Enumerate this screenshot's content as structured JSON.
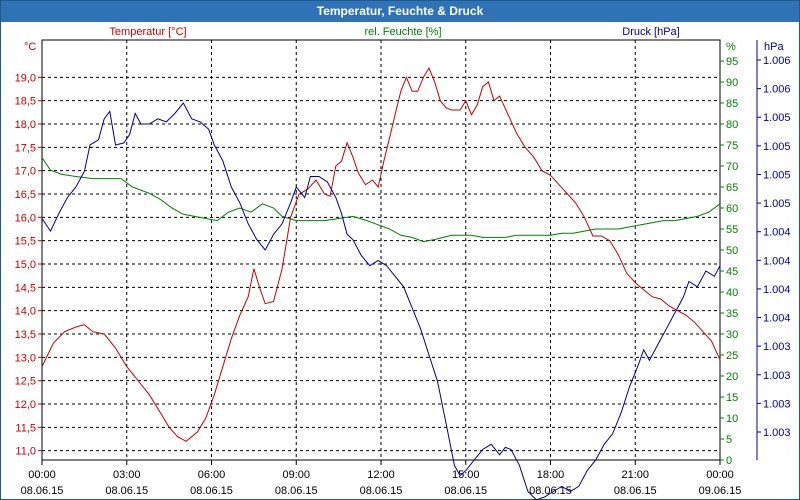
{
  "window": {
    "title": "Temperatur, Feuchte & Druck"
  },
  "colors": {
    "temperature": "#cc0000",
    "humidity": "#008000",
    "pressure": "#000099",
    "grid": "#000000",
    "frame": "#1e5a8c",
    "titlebar": "#2f73b6"
  },
  "chart_data": {
    "type": "line",
    "title": "Temperatur, Feuchte & Druck",
    "x_ticks": [
      {
        "time": "00:00",
        "date": "08.06.15"
      },
      {
        "time": "03:00",
        "date": "08.06.15"
      },
      {
        "time": "06:00",
        "date": "08.06.15"
      },
      {
        "time": "09:00",
        "date": "08.06.15"
      },
      {
        "time": "12:00",
        "date": "08.06.15"
      },
      {
        "time": "15:00",
        "date": "08.06.15"
      },
      {
        "time": "18:00",
        "date": "08.06.15"
      },
      {
        "time": "21:00",
        "date": "08.06.15"
      },
      {
        "time": "00:00",
        "date": "09.06.15"
      }
    ],
    "xlim_hours": [
      0,
      24
    ],
    "axes": {
      "temperature": {
        "label": "Temperatur [°C]",
        "unit": "°C",
        "ylim": [
          10.8,
          19.8
        ],
        "ticks": [
          "11,0",
          "11,5",
          "12,0",
          "12,5",
          "13,0",
          "13,5",
          "14,0",
          "14,5",
          "15,0",
          "15,5",
          "16,0",
          "16,5",
          "17,0",
          "17,5",
          "18,0",
          "18,5",
          "19,0"
        ]
      },
      "humidity": {
        "label": "rel. Feuchte [%]",
        "unit": "%",
        "ylim": [
          0,
          100
        ],
        "ticks": [
          "0",
          "5",
          "10",
          "15",
          "20",
          "25",
          "30",
          "35",
          "40",
          "45",
          "50",
          "55",
          "60",
          "65",
          "70",
          "75",
          "80",
          "85",
          "90",
          "95"
        ]
      },
      "pressure": {
        "label": "Druck [hPa]",
        "unit": "hPa",
        "ylim": [
          1002.6,
          1006.6
        ],
        "ticks": [
          "1.003",
          "1.003",
          "1.003",
          "1.003",
          "1.004",
          "1.004",
          "1.004",
          "1.004",
          "1.005",
          "1.005",
          "1.005",
          "1.005",
          "1.006",
          "1.006"
        ]
      }
    },
    "series": [
      {
        "name": "Temperatur [°C]",
        "axis": "temperature",
        "points": [
          [
            0,
            12.8
          ],
          [
            0.4,
            13.3
          ],
          [
            0.8,
            13.55
          ],
          [
            1.2,
            13.65
          ],
          [
            1.5,
            13.7
          ],
          [
            1.8,
            13.55
          ],
          [
            2.2,
            13.5
          ],
          [
            2.6,
            13.2
          ],
          [
            3,
            12.8
          ],
          [
            3.4,
            12.5
          ],
          [
            3.8,
            12.2
          ],
          [
            4.2,
            11.8
          ],
          [
            4.5,
            11.5
          ],
          [
            4.8,
            11.3
          ],
          [
            5.1,
            11.2
          ],
          [
            5.5,
            11.4
          ],
          [
            5.8,
            11.7
          ],
          [
            6.1,
            12.2
          ],
          [
            6.4,
            12.8
          ],
          [
            6.7,
            13.4
          ],
          [
            7,
            13.9
          ],
          [
            7.3,
            14.3
          ],
          [
            7.5,
            14.9
          ],
          [
            7.7,
            14.5
          ],
          [
            7.9,
            14.15
          ],
          [
            8.2,
            14.2
          ],
          [
            8.5,
            14.9
          ],
          [
            8.8,
            16.0
          ],
          [
            9.1,
            16.5
          ],
          [
            9.4,
            16.6
          ],
          [
            9.7,
            16.8
          ],
          [
            10,
            16.5
          ],
          [
            10.2,
            16.45
          ],
          [
            10.4,
            17.1
          ],
          [
            10.6,
            17.2
          ],
          [
            10.8,
            17.6
          ],
          [
            11,
            17.3
          ],
          [
            11.2,
            16.95
          ],
          [
            11.45,
            16.7
          ],
          [
            11.7,
            16.8
          ],
          [
            11.9,
            16.65
          ],
          [
            12.1,
            17.2
          ],
          [
            12.3,
            17.7
          ],
          [
            12.5,
            18.2
          ],
          [
            12.7,
            18.7
          ],
          [
            12.9,
            19.0
          ],
          [
            13.1,
            18.7
          ],
          [
            13.3,
            18.7
          ],
          [
            13.5,
            19.0
          ],
          [
            13.7,
            19.2
          ],
          [
            13.9,
            18.9
          ],
          [
            14.1,
            18.5
          ],
          [
            14.3,
            18.35
          ],
          [
            14.5,
            18.3
          ],
          [
            14.8,
            18.3
          ],
          [
            15,
            18.5
          ],
          [
            15.2,
            18.2
          ],
          [
            15.4,
            18.4
          ],
          [
            15.6,
            18.8
          ],
          [
            15.8,
            18.9
          ],
          [
            16,
            18.5
          ],
          [
            16.2,
            18.6
          ],
          [
            16.5,
            18.2
          ],
          [
            16.8,
            17.8
          ],
          [
            17.1,
            17.5
          ],
          [
            17.4,
            17.3
          ],
          [
            17.7,
            17.0
          ],
          [
            18,
            16.9
          ],
          [
            18.3,
            16.7
          ],
          [
            18.6,
            16.5
          ],
          [
            18.9,
            16.3
          ],
          [
            19.2,
            16.0
          ],
          [
            19.5,
            15.6
          ],
          [
            19.8,
            15.6
          ],
          [
            20.1,
            15.5
          ],
          [
            20.4,
            15.2
          ],
          [
            20.7,
            14.8
          ],
          [
            21,
            14.6
          ],
          [
            21.3,
            14.45
          ],
          [
            21.6,
            14.3
          ],
          [
            21.9,
            14.25
          ],
          [
            22.2,
            14.1
          ],
          [
            22.5,
            14.0
          ],
          [
            22.8,
            13.9
          ],
          [
            23.1,
            13.75
          ],
          [
            23.4,
            13.55
          ],
          [
            23.7,
            13.35
          ],
          [
            24,
            12.95
          ]
        ]
      },
      {
        "name": "rel. Feuchte [%]",
        "axis": "humidity",
        "points": [
          [
            0,
            72
          ],
          [
            0.3,
            69
          ],
          [
            0.7,
            68
          ],
          [
            1.2,
            67.5
          ],
          [
            1.8,
            67
          ],
          [
            2.4,
            67
          ],
          [
            2.8,
            67
          ],
          [
            3.2,
            65
          ],
          [
            3.8,
            63.5
          ],
          [
            4.2,
            62
          ],
          [
            4.6,
            60
          ],
          [
            5,
            58.5
          ],
          [
            5.4,
            58
          ],
          [
            5.8,
            57.5
          ],
          [
            6.2,
            57
          ],
          [
            6.6,
            59
          ],
          [
            7,
            60
          ],
          [
            7.4,
            59
          ],
          [
            7.8,
            61
          ],
          [
            8.2,
            60
          ],
          [
            8.5,
            58
          ],
          [
            9,
            57
          ],
          [
            9.5,
            57
          ],
          [
            10,
            57
          ],
          [
            10.5,
            57.5
          ],
          [
            11,
            58
          ],
          [
            11.5,
            57
          ],
          [
            11.9,
            56
          ],
          [
            12.3,
            55
          ],
          [
            12.7,
            53.5
          ],
          [
            13.1,
            53
          ],
          [
            13.5,
            52
          ],
          [
            13.9,
            52.5
          ],
          [
            14.2,
            53
          ],
          [
            14.5,
            53.5
          ],
          [
            14.8,
            53.5
          ],
          [
            15.2,
            53.5
          ],
          [
            15.6,
            53
          ],
          [
            16,
            53
          ],
          [
            16.4,
            53
          ],
          [
            16.8,
            53.5
          ],
          [
            17.2,
            53.5
          ],
          [
            17.6,
            53.5
          ],
          [
            18,
            53.5
          ],
          [
            18.4,
            54
          ],
          [
            18.8,
            54
          ],
          [
            19.2,
            54.5
          ],
          [
            19.6,
            55
          ],
          [
            20,
            55
          ],
          [
            20.4,
            55
          ],
          [
            20.8,
            55.5
          ],
          [
            21.2,
            56
          ],
          [
            21.6,
            56.5
          ],
          [
            22,
            57
          ],
          [
            22.4,
            57
          ],
          [
            22.8,
            57.5
          ],
          [
            23.2,
            58
          ],
          [
            23.6,
            59
          ],
          [
            24,
            61
          ]
        ]
      },
      {
        "name": "Druck [hPa]",
        "axis": "pressure",
        "points": [
          [
            0,
            1004.9
          ],
          [
            0.3,
            1004.78
          ],
          [
            0.6,
            1004.95
          ],
          [
            0.9,
            1005.1
          ],
          [
            1.2,
            1005.2
          ],
          [
            1.5,
            1005.35
          ],
          [
            1.7,
            1005.6
          ],
          [
            2,
            1005.65
          ],
          [
            2.2,
            1005.85
          ],
          [
            2.4,
            1005.92
          ],
          [
            2.6,
            1005.6
          ],
          [
            2.9,
            1005.62
          ],
          [
            3.1,
            1005.7
          ],
          [
            3.3,
            1005.9
          ],
          [
            3.5,
            1005.8
          ],
          [
            3.8,
            1005.8
          ],
          [
            4.1,
            1005.85
          ],
          [
            4.4,
            1005.82
          ],
          [
            4.7,
            1005.9
          ],
          [
            5,
            1006.0
          ],
          [
            5.3,
            1005.85
          ],
          [
            5.6,
            1005.82
          ],
          [
            5.9,
            1005.75
          ],
          [
            6.1,
            1005.6
          ],
          [
            6.4,
            1005.45
          ],
          [
            6.7,
            1005.2
          ],
          [
            7,
            1005.05
          ],
          [
            7.3,
            1004.85
          ],
          [
            7.6,
            1004.7
          ],
          [
            7.9,
            1004.6
          ],
          [
            8.2,
            1004.75
          ],
          [
            8.5,
            1004.85
          ],
          [
            8.8,
            1005.05
          ],
          [
            9.0,
            1005.2
          ],
          [
            9.3,
            1005.1
          ],
          [
            9.5,
            1005.3
          ],
          [
            9.8,
            1005.3
          ],
          [
            10.1,
            1005.25
          ],
          [
            10.4,
            1005.1
          ],
          [
            10.6,
            1004.95
          ],
          [
            10.8,
            1004.75
          ],
          [
            11.0,
            1004.7
          ],
          [
            11.3,
            1004.55
          ],
          [
            11.6,
            1004.45
          ],
          [
            11.9,
            1004.5
          ],
          [
            12.2,
            1004.45
          ],
          [
            12.5,
            1004.35
          ],
          [
            12.8,
            1004.25
          ],
          [
            13.1,
            1004.05
          ],
          [
            13.4,
            1003.85
          ],
          [
            13.7,
            1003.6
          ],
          [
            14.0,
            1003.35
          ],
          [
            14.3,
            1002.95
          ],
          [
            14.6,
            1002.55
          ],
          [
            14.8,
            1002.45
          ],
          [
            15.0,
            1002.5
          ],
          [
            15.3,
            1002.6
          ],
          [
            15.6,
            1002.7
          ],
          [
            15.9,
            1002.75
          ],
          [
            16.2,
            1002.65
          ],
          [
            16.4,
            1002.72
          ],
          [
            16.6,
            1002.7
          ],
          [
            16.9,
            1002.55
          ],
          [
            17.2,
            1002.3
          ],
          [
            17.5,
            1002.22
          ],
          [
            17.8,
            1002.25
          ],
          [
            18.1,
            1002.3
          ],
          [
            18.4,
            1002.35
          ],
          [
            18.7,
            1002.3
          ],
          [
            19.0,
            1002.35
          ],
          [
            19.3,
            1002.5
          ],
          [
            19.6,
            1002.6
          ],
          [
            19.9,
            1002.75
          ],
          [
            20.2,
            1002.85
          ],
          [
            20.5,
            1003.05
          ],
          [
            20.8,
            1003.3
          ],
          [
            21.1,
            1003.5
          ],
          [
            21.3,
            1003.65
          ],
          [
            21.5,
            1003.55
          ],
          [
            21.8,
            1003.7
          ],
          [
            22.1,
            1003.85
          ],
          [
            22.4,
            1004.0
          ],
          [
            22.7,
            1004.15
          ],
          [
            22.9,
            1004.3
          ],
          [
            23.2,
            1004.25
          ],
          [
            23.5,
            1004.4
          ],
          [
            23.8,
            1004.35
          ],
          [
            24,
            1004.45
          ]
        ]
      }
    ]
  }
}
